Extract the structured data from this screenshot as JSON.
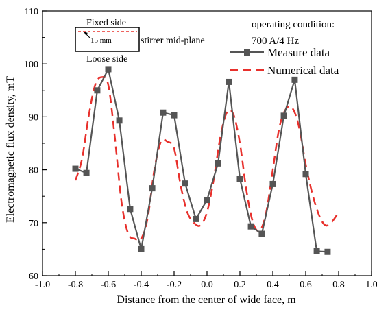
{
  "chart_data": {
    "type": "line",
    "xlabel": "Distance from the center of wide face, m",
    "ylabel": "Electromagnetic flux density, mT",
    "xlim": [
      -1.0,
      1.0
    ],
    "ylim": [
      60,
      110
    ],
    "xticks": [
      -1.0,
      -0.8,
      -0.6,
      -0.4,
      -0.2,
      0.0,
      0.2,
      0.4,
      0.6,
      0.8,
      1.0
    ],
    "xtick_labels": [
      "-1.0",
      "-0.8",
      "-0.6",
      "-0.4",
      "-0.2",
      "0.0",
      "0.2",
      "0.4",
      "0.6",
      "0.8",
      "1.0"
    ],
    "yticks": [
      60,
      70,
      80,
      90,
      100,
      110
    ],
    "ytick_labels": [
      "60",
      "70",
      "80",
      "90",
      "100",
      "110"
    ],
    "grid": false,
    "legend_position": "top-right",
    "series": [
      {
        "name": "Measure data",
        "style": "solid-square-markers",
        "color": "#555555",
        "x": [
          -0.8,
          -0.733,
          -0.667,
          -0.6,
          -0.533,
          -0.467,
          -0.4,
          -0.333,
          -0.267,
          -0.2,
          -0.133,
          -0.067,
          0.0,
          0.067,
          0.133,
          0.2,
          0.267,
          0.333,
          0.4,
          0.467,
          0.533,
          0.6,
          0.667,
          0.733
        ],
        "y": [
          80.2,
          79.4,
          95.0,
          99.0,
          89.3,
          72.6,
          65.0,
          76.5,
          90.8,
          90.3,
          77.4,
          70.7,
          74.3,
          81.2,
          96.6,
          78.3,
          69.3,
          67.9,
          77.3,
          90.2,
          97.0,
          79.2,
          64.6,
          64.5
        ]
      },
      {
        "name": "Numerical data",
        "style": "dashed",
        "color": "#e8302c",
        "x": [
          -0.8,
          -0.76,
          -0.72,
          -0.68,
          -0.64,
          -0.6,
          -0.56,
          -0.52,
          -0.48,
          -0.44,
          -0.4,
          -0.36,
          -0.32,
          -0.28,
          -0.24,
          -0.2,
          -0.16,
          -0.12,
          -0.08,
          -0.04,
          0.0,
          0.04,
          0.08,
          0.12,
          0.16,
          0.2,
          0.24,
          0.28,
          0.32,
          0.36,
          0.4,
          0.44,
          0.48,
          0.52,
          0.56,
          0.6,
          0.64,
          0.68,
          0.72,
          0.76,
          0.8
        ],
        "y": [
          78,
          82,
          90,
          96,
          97.5,
          96,
          86,
          74,
          68,
          67,
          67,
          71,
          80,
          85.3,
          85.3,
          84,
          77,
          72,
          70,
          69.5,
          72,
          78,
          86,
          90.8,
          90.5,
          85,
          76,
          70,
          68.5,
          72,
          80,
          88,
          91.5,
          91.6,
          88,
          81,
          75.5,
          71.5,
          69.5,
          70.2,
          72
        ]
      }
    ],
    "annotations": {
      "operating_condition_line1": "operating condition:",
      "operating_condition_line2": "700 A/4 Hz",
      "fixed_side": "Fixed side",
      "loose_side": "Loose side",
      "dimension": "15 mm",
      "mid_plane": "stirrer mid-plane"
    }
  }
}
